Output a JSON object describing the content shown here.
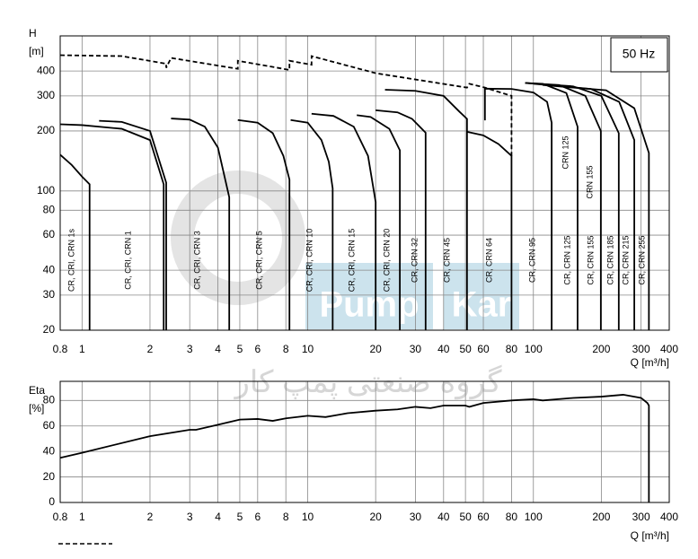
{
  "chart_data": [
    {
      "type": "line",
      "xlog": true,
      "ylog": true,
      "grid": true,
      "color": "#000000",
      "y_label_top": "H",
      "y_label": "[m]",
      "x_label": "Q [m³/h]",
      "badge": "50 Hz",
      "xlim": [
        0.8,
        400
      ],
      "ylim": [
        20,
        600
      ],
      "xticks": [
        0.8,
        1,
        2,
        3,
        4,
        5,
        6,
        8,
        10,
        20,
        30,
        40,
        50,
        60,
        80,
        100,
        200,
        300,
        400
      ],
      "yticks": [
        20,
        30,
        40,
        60,
        80,
        100,
        200,
        300,
        400
      ],
      "series": [
        {
          "x": [
            0.8,
            0.9,
            1,
            1.08,
            1.08
          ],
          "values": [
            152,
            135,
            118,
            108,
            20
          ]
        },
        {
          "x": [
            0.8,
            1,
            1.5,
            2,
            2.3,
            2.3
          ],
          "values": [
            216,
            214,
            205,
            180,
            108,
            20
          ]
        },
        {
          "x": [
            1.19,
            1.5,
            2,
            2.36,
            2.36
          ],
          "values": [
            225,
            222,
            200,
            110,
            20
          ]
        },
        {
          "x": [
            2.48,
            3,
            3.5,
            4,
            4.49,
            4.49
          ],
          "values": [
            231,
            228,
            210,
            165,
            93,
            20
          ]
        },
        {
          "x": [
            4.9,
            6,
            7,
            7.8,
            8.3,
            8.3
          ],
          "values": [
            227,
            220,
            195,
            150,
            114,
            20
          ]
        },
        {
          "x": [
            8.4,
            10,
            11.5,
            12.4,
            12.9,
            12.9
          ],
          "values": [
            227,
            220,
            180,
            140,
            103,
            20
          ]
        },
        {
          "x": [
            10.4,
            13,
            16,
            18.5,
            20,
            20
          ],
          "values": [
            244,
            238,
            210,
            150,
            88,
            20
          ]
        },
        {
          "x": [
            16.5,
            19,
            23,
            25.6,
            25.6
          ],
          "values": [
            240,
            235,
            205,
            160,
            20
          ]
        },
        {
          "x": [
            20,
            25,
            29,
            33.3,
            33.3
          ],
          "values": [
            254,
            248,
            230,
            196,
            20
          ]
        },
        {
          "x": [
            22,
            30,
            40,
            47,
            50.8,
            50.8
          ],
          "values": [
            322,
            318,
            300,
            250,
            230,
            20
          ]
        },
        {
          "x": [
            50.8,
            60,
            70,
            80,
            80
          ],
          "values": [
            198,
            190,
            172,
            150,
            20
          ]
        },
        {
          "x": [
            61,
            61,
            80,
            100,
            115,
            120.5,
            120.5
          ],
          "values": [
            226,
            326,
            325,
            312,
            280,
            220,
            20
          ]
        },
        {
          "x": [
            92,
            110,
            140,
            157,
            157
          ],
          "values": [
            348,
            345,
            310,
            210,
            20
          ]
        },
        {
          "x": [
            92,
            130,
            170,
            199,
            199
          ],
          "values": [
            348,
            340,
            300,
            200,
            20
          ]
        },
        {
          "x": [
            92,
            150,
            200,
            239,
            239
          ],
          "values": [
            348,
            335,
            300,
            195,
            20
          ]
        },
        {
          "x": [
            100,
            180,
            240,
            280,
            280
          ],
          "values": [
            345,
            325,
            280,
            180,
            20
          ]
        },
        {
          "x": [
            110,
            210,
            280,
            325,
            325
          ],
          "values": [
            340,
            320,
            260,
            155,
            20
          ]
        },
        {
          "x": [
            0.8,
            1.5,
            2.36,
            2.36,
            2.48,
            4.9,
            4.9,
            8.3,
            8.3,
            10.4,
            10.4,
            20,
            50.8,
            52,
            61,
            80,
            80
          ],
          "values": [
            480,
            475,
            435,
            415,
            465,
            410,
            450,
            405,
            450,
            430,
            475,
            390,
            330,
            345,
            330,
            300,
            150
          ],
          "line_style": "dashed"
        }
      ],
      "annotations": [
        "CR, CRI, CRN 1s",
        "CR, CRI, CRN 1",
        "CR, CRI, CRN 3",
        "CR, CRI, CRN 5",
        "CR, CRI, CRN 10",
        "CR, CRI, CRN 15",
        "CR, CRI, CRN 20",
        "CR, CRN 32",
        "CR, CRN 45",
        "CR, CRN 64",
        "CR, CRN 95",
        "CR, CRN 125",
        "CR, CRN 155",
        "CR, CRN 185",
        "CR, CRN 215",
        "CR, CRN 255",
        "CRN 125",
        "CRN 155"
      ]
    },
    {
      "type": "line",
      "xlog": true,
      "ylog": false,
      "grid": true,
      "color": "#000000",
      "y_label_top": "Eta",
      "y_label": "[%]",
      "x_label": "Q [m³/h]",
      "xlim": [
        0.8,
        400
      ],
      "ylim": [
        0,
        95
      ],
      "xticks": [
        0.8,
        1,
        2,
        3,
        4,
        5,
        6,
        8,
        10,
        20,
        30,
        40,
        50,
        60,
        80,
        100,
        200,
        300,
        400
      ],
      "yticks": [
        0,
        20,
        40,
        60,
        80
      ],
      "series": [
        {
          "x": [
            0.8,
            1,
            2,
            3,
            3.2,
            4,
            5,
            6,
            7,
            8,
            10,
            12,
            15,
            20,
            25,
            30,
            35,
            40,
            50,
            52,
            60,
            80,
            100,
            110,
            150,
            200,
            250,
            300,
            320,
            325,
            325
          ],
          "values": [
            35,
            39,
            52,
            57,
            57,
            61,
            65,
            65.5,
            64,
            66,
            68,
            67,
            70,
            72,
            73,
            75,
            74,
            76,
            76,
            75,
            78,
            80,
            81,
            80,
            82,
            83,
            84.5,
            82,
            78,
            76,
            0
          ]
        }
      ]
    }
  ],
  "watermark": {
    "words": [
      "Pump",
      "Kar"
    ],
    "subtitle": "گروه صنعتی پمپ کار"
  }
}
